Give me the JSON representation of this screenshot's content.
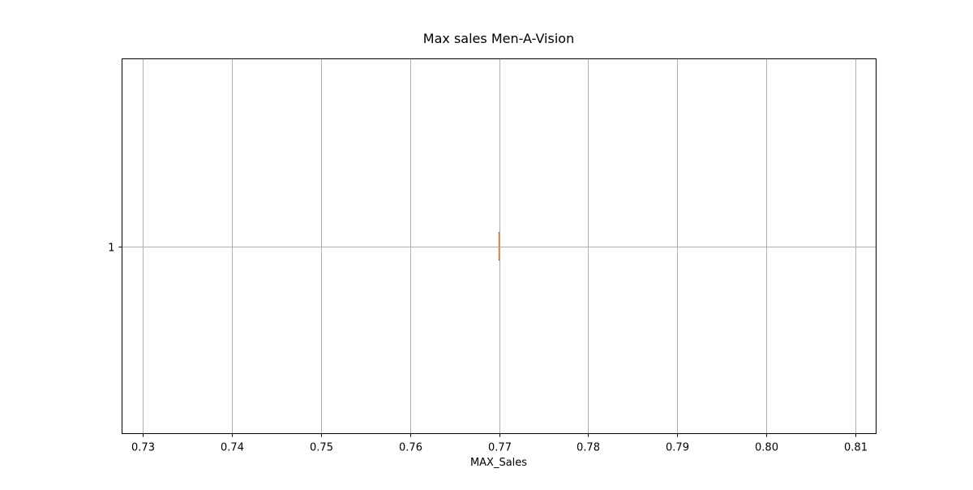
{
  "chart_data": {
    "type": "boxplot",
    "title": "Max sales Men-A-Vision",
    "xlabel": "MAX_Sales",
    "ylabel": "",
    "orientation": "horizontal",
    "xlim": [
      0.7277,
      0.8123
    ],
    "ylim": [
      0.5,
      1.5
    ],
    "xticks": [
      0.73,
      0.74,
      0.75,
      0.76,
      0.77,
      0.78,
      0.79,
      0.8,
      0.81
    ],
    "xtick_labels": [
      "0.73",
      "0.74",
      "0.75",
      "0.76",
      "0.77",
      "0.78",
      "0.79",
      "0.80",
      "0.81"
    ],
    "yticks": [
      1
    ],
    "ytick_labels": [
      "1"
    ],
    "grid": true,
    "series": [
      {
        "position": 1,
        "min": 0.77,
        "q1": 0.77,
        "median": 0.77,
        "q3": 0.77,
        "max": 0.77
      }
    ],
    "colors": {
      "median": "#ff7f0e",
      "box": "#000000",
      "grid": "#b0b0b0"
    }
  }
}
